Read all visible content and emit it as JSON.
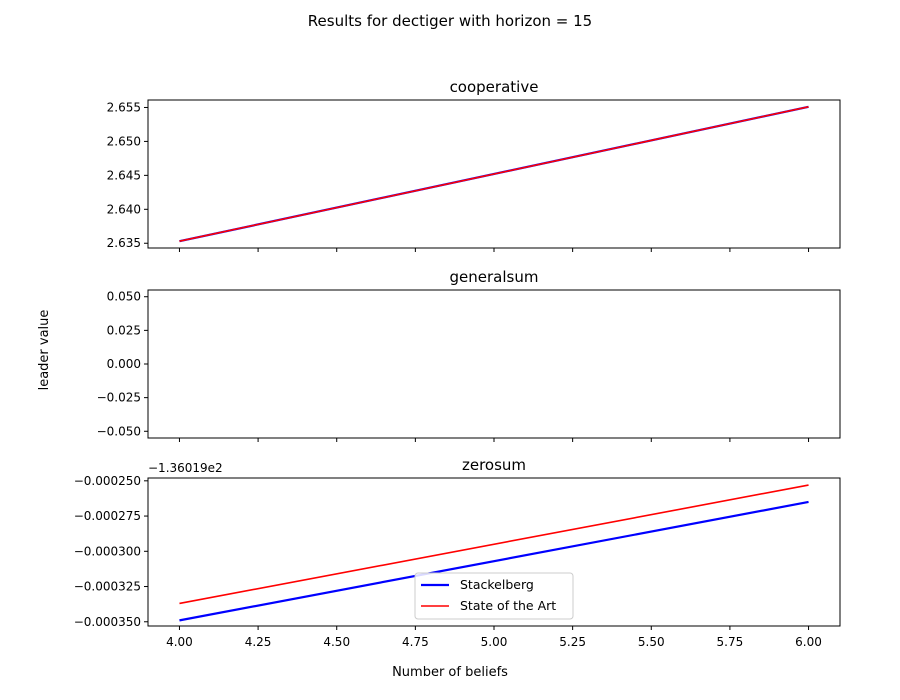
{
  "suptitle": "Results for dectiger with horizon = 15",
  "ylabel": "leader value",
  "xlabel": "Number of beliefs",
  "legend": {
    "placement": "lower-center",
    "entries": [
      {
        "name": "Stackelberg",
        "color": "#0000ff"
      },
      {
        "name": "State of the Art",
        "color": "#ff0000"
      }
    ]
  },
  "chart_data": [
    {
      "type": "line",
      "title": "cooperative",
      "x": [
        4.0,
        6.0
      ],
      "xlim": [
        3.9,
        6.1
      ],
      "ylim": [
        2.6343,
        2.6561
      ],
      "yticks": [
        2.635,
        2.64,
        2.645,
        2.65,
        2.655
      ],
      "ytick_labels": [
        "2.635",
        "2.640",
        "2.645",
        "2.650",
        "2.655"
      ],
      "offset_label": "",
      "series": [
        {
          "name": "Stackelberg",
          "color": "#0000ff",
          "values": [
            2.6353,
            2.6551
          ]
        },
        {
          "name": "State of the Art",
          "color": "#ff0000",
          "values": [
            2.6353,
            2.6551
          ]
        }
      ]
    },
    {
      "type": "line",
      "title": "generalsum",
      "x": [],
      "xlim": [
        3.9,
        6.1
      ],
      "ylim": [
        -0.055,
        0.055
      ],
      "yticks": [
        -0.05,
        -0.025,
        0.0,
        0.025,
        0.05
      ],
      "ytick_labels": [
        "−0.050",
        "−0.025",
        "0.000",
        "0.025",
        "0.050"
      ],
      "offset_label": "",
      "series": []
    },
    {
      "type": "line",
      "title": "zerosum",
      "x": [
        4.0,
        6.0
      ],
      "xlim": [
        3.9,
        6.1
      ],
      "ylim": [
        -0.000353,
        -0.000248
      ],
      "yticks": [
        -0.00035,
        -0.000325,
        -0.0003,
        -0.000275,
        -0.00025
      ],
      "ytick_labels": [
        "−0.000350",
        "−0.000325",
        "−0.000300",
        "−0.000275",
        "−0.000250"
      ],
      "offset_label": "−1.36019e2",
      "series": [
        {
          "name": "Stackelberg",
          "color": "#0000ff",
          "values": [
            -0.000349,
            -0.000265
          ]
        },
        {
          "name": "State of the Art",
          "color": "#ff0000",
          "values": [
            -0.000337,
            -0.000253
          ]
        }
      ]
    }
  ],
  "shared_xaxis": {
    "ticks": [
      4.0,
      4.25,
      4.5,
      4.75,
      5.0,
      5.25,
      5.5,
      5.75,
      6.0
    ],
    "tick_labels": [
      "4.00",
      "4.25",
      "4.50",
      "4.75",
      "5.00",
      "5.25",
      "5.50",
      "5.75",
      "6.00"
    ]
  }
}
